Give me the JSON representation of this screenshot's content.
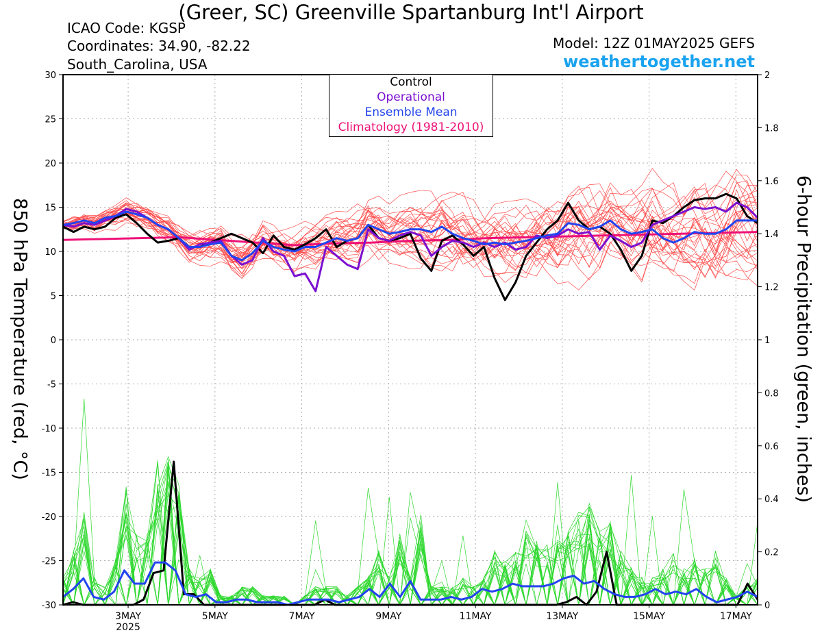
{
  "title": "(Greer, SC) Greenville Spartanburg Int'l Airport",
  "station": {
    "icao": "ICAO Code: KGSP",
    "coordinates": "Coordinates: 34.90, -82.22",
    "region": "South_Carolina, USA"
  },
  "model": "Model: 12Z 01MAY2025 GEFS",
  "website": "weathertogether.net",
  "colors": {
    "members_temp": "#ff4a4a",
    "members_precip": "#2ed82e",
    "control": "#000000",
    "operational": "#7b10d0",
    "ensemble_mean": "#2244ee",
    "climatology": "#ee1177",
    "website": "#1aa3f0"
  },
  "legend": {
    "control": "Control",
    "operational": "Operational",
    "ensemble_mean": "Ensemble Mean",
    "climatology": "Climatology (1981-2010)"
  },
  "chart_data": {
    "type": "line",
    "x_unit": "days since 1 May 2025 12Z",
    "xlim": [
      0.5,
      16.5
    ],
    "x_ticks": [
      {
        "x": 2,
        "label": "3MAY",
        "sub": "2025"
      },
      {
        "x": 4,
        "label": "5MAY"
      },
      {
        "x": 6,
        "label": "7MAY"
      },
      {
        "x": 8,
        "label": "9MAY"
      },
      {
        "x": 10,
        "label": "11MAY"
      },
      {
        "x": 12,
        "label": "13MAY"
      },
      {
        "x": 14,
        "label": "15MAY"
      },
      {
        "x": 16,
        "label": "17MAY"
      }
    ],
    "y_left": {
      "label": "850 hPa Temperature (red, °C)",
      "lim": [
        -30,
        30
      ],
      "ticks": [
        "30",
        "25",
        "20",
        "15",
        "10",
        "5",
        "0",
        "-5",
        "-10",
        "-15",
        "-20",
        "-25",
        "-30"
      ]
    },
    "y_right": {
      "label": "6-hour Precipitation (green, inches)",
      "lim": [
        0,
        2
      ],
      "ticks": [
        "2",
        "1.8",
        "1.6",
        "1.4",
        "1.2",
        "1",
        "0.8",
        "0.6",
        "0.4",
        "0.2",
        "0"
      ]
    },
    "grid": true,
    "legend_position": "top-center",
    "temperature": {
      "control": [
        12.8,
        12.2,
        12.8,
        12.5,
        12.8,
        13.8,
        14.2,
        13.2,
        12.0,
        11.0,
        11.2,
        11.5,
        10.5,
        10.5,
        11.0,
        11.5,
        12.0,
        11.5,
        11.0,
        9.8,
        11.8,
        10.5,
        10.2,
        10.8,
        11.5,
        12.5,
        10.5,
        11.2,
        11.5,
        13.0,
        11.5,
        11.2,
        11.5,
        12.0,
        9.2,
        7.8,
        11.2,
        11.8,
        10.8,
        9.5,
        10.5,
        7.0,
        4.5,
        6.5,
        9.5,
        11.0,
        12.5,
        13.5,
        15.5,
        13.5,
        12.5,
        12.8,
        12.0,
        10.2,
        7.8,
        9.5,
        13.5,
        13.2,
        14.0,
        15.0,
        15.8,
        16.0,
        16.0,
        16.5,
        16.0,
        14.0,
        13.2
      ],
      "operational": [
        13.0,
        12.8,
        13.2,
        13.0,
        13.5,
        14.0,
        14.8,
        14.5,
        13.8,
        13.0,
        12.5,
        11.5,
        10.2,
        10.8,
        11.0,
        11.2,
        9.5,
        8.5,
        9.0,
        11.5,
        10.0,
        9.5,
        7.2,
        7.5,
        5.5,
        10.5,
        9.5,
        8.5,
        8.0,
        12.5,
        11.5,
        11.2,
        11.8,
        12.2,
        11.8,
        9.5,
        10.5,
        11.2,
        11.0,
        10.5,
        11.0,
        10.5,
        11.0,
        10.2,
        10.5,
        11.8,
        11.5,
        11.8,
        12.5,
        12.0,
        12.2,
        10.2,
        11.8,
        11.2,
        10.5,
        11.0,
        13.0,
        13.5,
        14.0,
        14.5,
        15.0,
        14.8,
        15.0,
        14.5,
        15.5,
        15.0,
        13.8
      ],
      "ensemble_mean": [
        13.0,
        13.2,
        13.5,
        13.2,
        13.8,
        14.0,
        14.5,
        14.2,
        13.8,
        13.0,
        12.5,
        11.5,
        10.5,
        10.5,
        10.8,
        11.0,
        9.5,
        9.0,
        9.8,
        11.2,
        10.5,
        10.2,
        10.0,
        10.5,
        10.5,
        11.0,
        11.5,
        11.2,
        11.5,
        13.0,
        12.5,
        12.0,
        12.2,
        12.5,
        12.5,
        12.2,
        12.8,
        12.0,
        11.5,
        11.2,
        10.8,
        11.0,
        10.8,
        11.0,
        11.2,
        11.5,
        11.8,
        12.0,
        13.2,
        13.0,
        12.5,
        12.8,
        13.5,
        12.5,
        12.0,
        12.2,
        12.5,
        11.5,
        11.0,
        11.5,
        12.2,
        12.0,
        12.0,
        12.5,
        13.5,
        13.5,
        13.5
      ],
      "climatology": [
        11.3,
        11.4,
        11.5,
        11.6,
        11.3,
        11.0,
        10.7,
        10.9,
        11.0,
        11.2,
        11.3,
        11.5,
        11.6,
        11.7,
        11.8,
        11.9,
        12.0,
        12.1,
        12.2
      ]
    },
    "precipitation": {
      "control": [
        0,
        0.01,
        0,
        0,
        0,
        0,
        0,
        0,
        0.02,
        0.12,
        0.13,
        0.54,
        0.04,
        0.04,
        0,
        0,
        0,
        0,
        0,
        0,
        0,
        0,
        0,
        0,
        0,
        0,
        0.02,
        0,
        0,
        0,
        0,
        0,
        0,
        0,
        0,
        0,
        0,
        0,
        0,
        0,
        0,
        0,
        0,
        0,
        0,
        0,
        0,
        0,
        0,
        0,
        0.01,
        0.03,
        0,
        0.05,
        0.2,
        0,
        0,
        0,
        0,
        0,
        0,
        0,
        0,
        0,
        0,
        0,
        0,
        0,
        0.08,
        0.02
      ],
      "ensemble_mean": [
        0.03,
        0.06,
        0.1,
        0.03,
        0.02,
        0.05,
        0.13,
        0.08,
        0.08,
        0.16,
        0.16,
        0.13,
        0.04,
        0.03,
        0.04,
        0.01,
        0.01,
        0.02,
        0.02,
        0.01,
        0.01,
        0.01,
        0.0,
        0.01,
        0.02,
        0.02,
        0.02,
        0.01,
        0.02,
        0.03,
        0.06,
        0.03,
        0.08,
        0.03,
        0.09,
        0.02,
        0.02,
        0.02,
        0.03,
        0.02,
        0.03,
        0.06,
        0.05,
        0.06,
        0.08,
        0.07,
        0.07,
        0.07,
        0.08,
        0.1,
        0.11,
        0.08,
        0.09,
        0.06,
        0.04,
        0.03,
        0.03,
        0.04,
        0.06,
        0.04,
        0.05,
        0.04,
        0.06,
        0.03,
        0.01,
        0.02,
        0.03,
        0.05,
        0.03
      ]
    }
  }
}
